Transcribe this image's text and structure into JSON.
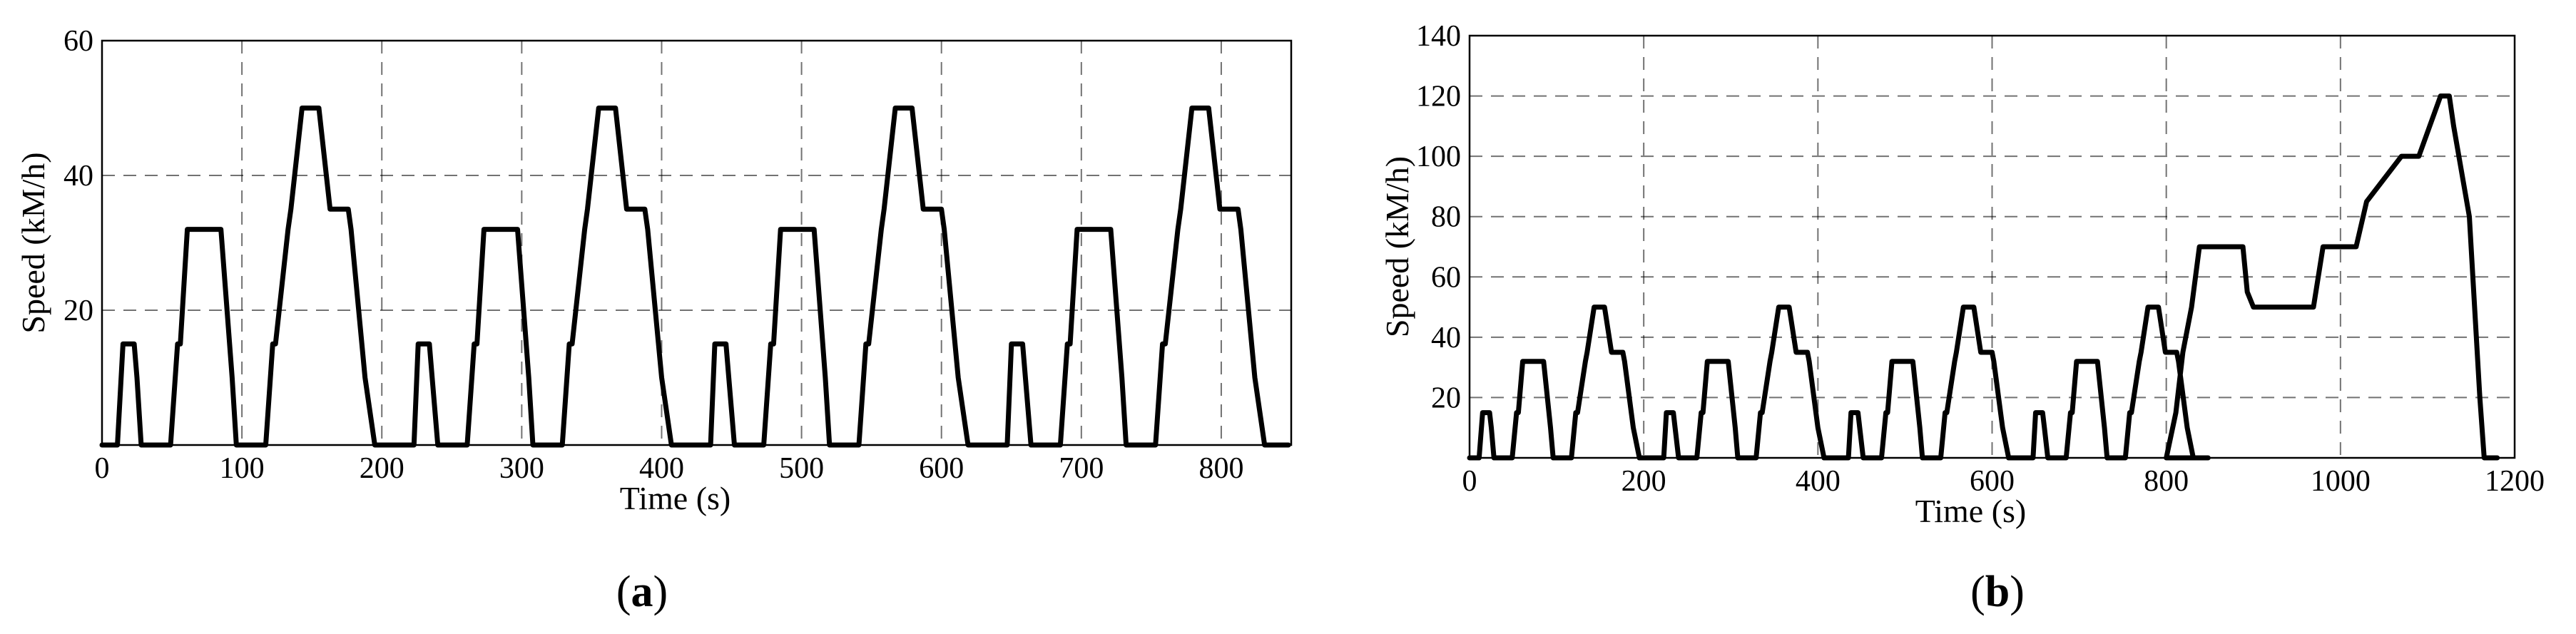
{
  "chart_data": [
    {
      "type": "line",
      "xlabel": "Time (s)",
      "ylabel": "Speed (kM/h)",
      "xlim": [
        0,
        850
      ],
      "ylim": [
        0,
        60
      ],
      "xticks": [
        "0",
        "100",
        "200",
        "300",
        "400",
        "500",
        "600",
        "700",
        "800"
      ],
      "yticks": [
        "20",
        "40",
        "60"
      ],
      "grid": true,
      "legend": "none",
      "caption_letter": "a",
      "caption_open": "(",
      "caption_close": ")",
      "series": [
        {
          "x": [
            0,
            11,
            15,
            23,
            25,
            28,
            49,
            54,
            56,
            61,
            85,
            93,
            96,
            117,
            122,
            124,
            133,
            135,
            143,
            155,
            163,
            176,
            178,
            188,
            195,
            212,
            223,
            226,
            234,
            236,
            240,
            245,
            261,
            266,
            268,
            273,
            297,
            305,
            308,
            329,
            334,
            336,
            345,
            347,
            355,
            367,
            375,
            388,
            390,
            400,
            407,
            424,
            435,
            438,
            446,
            448,
            452,
            457,
            473,
            478,
            480,
            485,
            509,
            517,
            520,
            541,
            546,
            548,
            557,
            559,
            567,
            579,
            587,
            600,
            602,
            612,
            619,
            636,
            647,
            650,
            658,
            660,
            664,
            669,
            685,
            690,
            692,
            697,
            721,
            729,
            732,
            753,
            758,
            760,
            769,
            771,
            779,
            791,
            799,
            812,
            814,
            824,
            831,
            848
          ],
          "y": [
            0,
            0,
            15,
            15,
            10,
            0,
            0,
            15,
            15,
            32,
            32,
            10,
            0,
            0,
            15,
            15,
            32,
            35,
            50,
            50,
            35,
            35,
            32,
            10,
            0,
            0,
            0,
            15,
            15,
            10,
            0,
            0,
            0,
            15,
            15,
            32,
            32,
            10,
            0,
            0,
            15,
            15,
            32,
            35,
            50,
            50,
            35,
            35,
            32,
            10,
            0,
            0,
            0,
            15,
            15,
            10,
            0,
            0,
            0,
            15,
            15,
            32,
            32,
            10,
            0,
            0,
            15,
            15,
            32,
            35,
            50,
            50,
            35,
            35,
            32,
            10,
            0,
            0,
            0,
            15,
            15,
            10,
            0,
            0,
            0,
            15,
            15,
            32,
            32,
            10,
            0,
            0,
            15,
            15,
            32,
            35,
            50,
            50,
            35,
            35,
            32,
            10,
            0,
            0
          ]
        }
      ]
    },
    {
      "type": "line",
      "xlabel": "Time (s)",
      "ylabel": "Speed (kM/h)",
      "xlim": [
        0,
        1200
      ],
      "ylim": [
        0,
        140
      ],
      "xticks": [
        "0",
        "200",
        "400",
        "600",
        "800",
        "1000",
        "1200"
      ],
      "yticks": [
        "20",
        "40",
        "60",
        "80",
        "100",
        "120",
        "140"
      ],
      "grid": true,
      "legend": "none",
      "caption_letter": "b",
      "caption_open": "(",
      "caption_close": ")",
      "series": [
        {
          "x": [
            0,
            11,
            15,
            23,
            25,
            28,
            49,
            54,
            56,
            61,
            85,
            93,
            96,
            117,
            122,
            124,
            133,
            135,
            143,
            155,
            163,
            176,
            178,
            188,
            195,
            212,
            223,
            226,
            234,
            236,
            240,
            245,
            261,
            266,
            268,
            273,
            297,
            305,
            308,
            329,
            334,
            336,
            345,
            347,
            355,
            367,
            375,
            388,
            390,
            400,
            407,
            424,
            435,
            438,
            446,
            448,
            452,
            457,
            473,
            478,
            480,
            485,
            509,
            517,
            520,
            541,
            546,
            548,
            557,
            559,
            567,
            579,
            587,
            600,
            602,
            612,
            619,
            636,
            647,
            650,
            658,
            660,
            664,
            669,
            685,
            690,
            692,
            697,
            721,
            729,
            732,
            753,
            758,
            760,
            769,
            771,
            779,
            791,
            799,
            812,
            814,
            824,
            831,
            848,
            800,
            811,
            819,
            829,
            838,
            848,
            870,
            888,
            893,
            900,
            969,
            980,
            1018,
            1030,
            1070,
            1090,
            1115,
            1125,
            1130,
            1148,
            1160,
            1165,
            1170,
            1180
          ],
          "y": [
            0,
            0,
            15,
            15,
            10,
            0,
            0,
            15,
            15,
            32,
            32,
            10,
            0,
            0,
            15,
            15,
            32,
            35,
            50,
            50,
            35,
            35,
            32,
            10,
            0,
            0,
            0,
            15,
            15,
            10,
            0,
            0,
            0,
            15,
            15,
            32,
            32,
            10,
            0,
            0,
            15,
            15,
            32,
            35,
            50,
            50,
            35,
            35,
            32,
            10,
            0,
            0,
            0,
            15,
            15,
            10,
            0,
            0,
            0,
            15,
            15,
            32,
            32,
            10,
            0,
            0,
            15,
            15,
            32,
            35,
            50,
            50,
            35,
            35,
            32,
            10,
            0,
            0,
            0,
            15,
            15,
            10,
            0,
            0,
            0,
            15,
            15,
            32,
            32,
            10,
            0,
            0,
            15,
            15,
            32,
            35,
            50,
            50,
            35,
            35,
            32,
            10,
            0,
            0,
            0,
            15,
            35,
            50,
            70,
            70,
            70,
            70,
            55,
            50,
            50,
            70,
            70,
            85,
            100,
            100,
            120,
            120,
            110,
            80,
            20,
            0,
            0,
            0
          ]
        }
      ]
    }
  ]
}
